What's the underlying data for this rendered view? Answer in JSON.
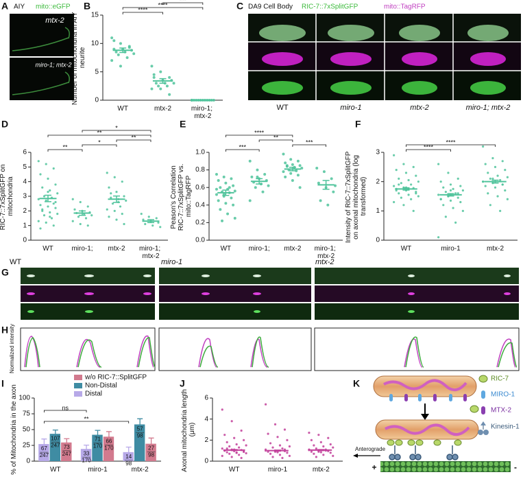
{
  "figure": {
    "A": {
      "letter": "A",
      "channel": "AIY",
      "marker": "mito::eGFP",
      "rows": [
        "mtx-2",
        "miro-1; mtx-2"
      ]
    },
    "C": {
      "letter": "C",
      "title": "DA9 Cell Body",
      "green": "RIC-7::7xSplitGFP",
      "magenta": "mito::TagRFP",
      "columns": [
        "WT",
        "miro-1",
        "mtx-2",
        "miro-1; mtx-2"
      ]
    },
    "G": {
      "letter": "G",
      "columns": [
        "WT",
        "miro-1",
        "mtx-2"
      ]
    },
    "H": {
      "letter": "H",
      "ylabel": "Normalized intensity"
    },
    "K": {
      "letter": "K",
      "legend": [
        "RIC-7",
        "MIRO-1",
        "MTX-2",
        "Kinesin-1"
      ],
      "direction": "Anterograde",
      "plus": "+",
      "minus": "-"
    }
  },
  "chart_data": [
    {
      "type": "dotplot",
      "letter": "B",
      "ylabel": "Number of mitochondria in AIY neurite",
      "color": "#4fc39b",
      "categories": [
        "WT",
        "mtx-2",
        "miro-1; mtx-2"
      ],
      "points": [
        [
          11,
          10,
          9.5,
          9,
          9,
          8.8,
          8.5,
          8.5,
          8.2,
          8,
          7.5,
          7,
          6,
          9.3,
          10.5
        ],
        [
          6,
          5,
          4,
          4,
          3.5,
          3.5,
          3,
          3,
          3,
          2.5,
          2.5,
          2,
          2,
          1,
          4.5
        ],
        [
          0,
          0,
          0,
          0,
          0,
          0,
          0,
          0,
          0,
          0,
          0,
          0
        ]
      ],
      "means": [
        8.8,
        3.4,
        0
      ],
      "errors": [
        0.4,
        0.4,
        0
      ],
      "ylim": [
        0,
        15
      ],
      "yticks": [
        0,
        5,
        10,
        15
      ],
      "brackets": [
        {
          "between": [
            "WT",
            "mtx-2"
          ],
          "label": "****"
        },
        {
          "between": [
            "WT",
            "miro-1; mtx-2"
          ],
          "label": "****"
        },
        {
          "between": [
            "mtx-2",
            "miro-1; mtx-2"
          ],
          "label": "***"
        }
      ]
    },
    {
      "type": "dotplot",
      "letter": "D",
      "ylabel": "Enrichment of RIC-7::7xSplitGFP on mitochondria",
      "color": "#4fc39b",
      "categories": [
        "WT",
        "miro-1;",
        "mtx-2",
        "miro-1; mtx-2"
      ],
      "points": [
        [
          5.4,
          5.2,
          4.9,
          4.5,
          4.2,
          3.8,
          3.6,
          3.4,
          3.2,
          3.0,
          2.9,
          2.8,
          2.7,
          2.5,
          2.4,
          2.3,
          2.2,
          2.0,
          1.9,
          1.8,
          1.7,
          1.5,
          1.3,
          1.2,
          1.0,
          0.8,
          3.3,
          2.6,
          2.1,
          1.6
        ],
        [
          2.8,
          2.6,
          2.3,
          2.1,
          2.0,
          1.9,
          1.85,
          1.8,
          1.7,
          1.6,
          1.5,
          1.3,
          1.1,
          1.0
        ],
        [
          4.6,
          4.3,
          4.0,
          3.6,
          3.3,
          3.0,
          2.9,
          2.8,
          2.7,
          2.5,
          2.3,
          2.1,
          2.0,
          1.8,
          1.6,
          1.4,
          1.1,
          3.2,
          2.6
        ],
        [
          1.8,
          1.6,
          1.5,
          1.4,
          1.3,
          1.2,
          1.1,
          1.0,
          0.9
        ]
      ],
      "means": [
        2.85,
        1.85,
        2.8,
        1.3
      ],
      "errors": [
        0.22,
        0.15,
        0.22,
        0.1
      ],
      "ylim": [
        0,
        6
      ],
      "yticks": [
        0,
        1,
        2,
        3,
        4,
        5,
        6
      ],
      "brackets": [
        {
          "between": [
            "WT",
            "miro-1;"
          ],
          "label": "**"
        },
        {
          "between": [
            "miro-1;",
            "mtx-2"
          ],
          "label": "*"
        },
        {
          "between": [
            "mtx-2",
            "miro-1; mtx-2"
          ],
          "label": "**"
        },
        {
          "between": [
            "WT",
            "miro-1; mtx-2"
          ],
          "label": "**"
        },
        {
          "between": [
            "miro-1;",
            "miro-1; mtx-2"
          ],
          "label": "*"
        }
      ]
    },
    {
      "type": "dotplot",
      "letter": "E",
      "ylabel": "Peason's Correlation RIC-7::7xSplitGFP vs. mito::TagRFP",
      "color": "#4fc39b",
      "categories": [
        "WT",
        "miro-1;",
        "mtx-2",
        "miro-1; mtx-2"
      ],
      "points": [
        [
          0.75,
          0.72,
          0.7,
          0.68,
          0.65,
          0.62,
          0.6,
          0.58,
          0.56,
          0.55,
          0.54,
          0.52,
          0.5,
          0.48,
          0.45,
          0.42,
          0.4,
          0.35,
          0.3,
          0.25,
          0.22,
          0.6,
          0.58,
          0.52
        ],
        [
          0.9,
          0.8,
          0.75,
          0.72,
          0.7,
          0.68,
          0.66,
          0.64,
          0.62,
          0.6,
          0.55,
          0.45,
          0.72
        ],
        [
          0.98,
          0.92,
          0.9,
          0.88,
          0.86,
          0.85,
          0.84,
          0.83,
          0.82,
          0.8,
          0.79,
          0.78,
          0.76,
          0.74,
          0.72,
          0.68,
          0.6,
          0.85
        ],
        [
          0.82,
          0.78,
          0.7,
          0.65,
          0.6,
          0.55,
          0.45,
          0.4,
          0.62
        ]
      ],
      "means": [
        0.54,
        0.67,
        0.81,
        0.63
      ],
      "errors": [
        0.03,
        0.03,
        0.02,
        0.05
      ],
      "ylim": [
        0,
        1
      ],
      "yticks": [
        {
          "value": 0,
          "label": "0.0"
        },
        0.2,
        0.4,
        0.6,
        0.8,
        {
          "value": 1,
          "label": "1.0"
        }
      ],
      "brackets": [
        {
          "between": [
            "WT",
            "miro-1;"
          ],
          "label": "***"
        },
        {
          "between": [
            "mtx-2",
            "miro-1; mtx-2"
          ],
          "label": "***"
        },
        {
          "between": [
            "miro-1;",
            "mtx-2"
          ],
          "label": "**"
        },
        {
          "between": [
            "WT",
            "mtx-2"
          ],
          "label": "****"
        }
      ]
    },
    {
      "type": "dotplot",
      "letter": "F",
      "ylabel": "Intensity of RIC-7::7xSplitGFP on axonal mitochondria (log transformed)",
      "color": "#4fc39b",
      "categories": [
        "WT",
        "miro-1",
        "mtx-2"
      ],
      "points": [
        [
          2.9,
          2.6,
          2.5,
          2.4,
          2.3,
          2.2,
          2.1,
          2.05,
          2.0,
          1.95,
          1.9,
          1.85,
          1.8,
          1.78,
          1.75,
          1.7,
          1.65,
          1.6,
          1.55,
          1.5,
          1.45,
          1.4,
          1.3,
          1.2,
          1.0,
          1.7,
          1.8,
          1.6,
          1.9,
          1.75
        ],
        [
          2.6,
          2.3,
          2.1,
          2.0,
          1.9,
          1.85,
          1.8,
          1.75,
          1.7,
          1.65,
          1.6,
          1.55,
          1.5,
          1.45,
          1.4,
          1.35,
          1.3,
          1.2,
          1.1,
          1.0,
          0.8,
          0.6,
          0.1,
          1.5,
          1.6,
          1.4,
          1.7
        ],
        [
          3.2,
          2.8,
          2.7,
          2.6,
          2.5,
          2.4,
          2.3,
          2.2,
          2.15,
          2.1,
          2.05,
          2.0,
          1.95,
          1.9,
          1.85,
          1.8,
          1.7,
          1.6,
          1.5,
          1.4,
          1.2,
          1.0,
          2.0,
          2.1,
          1.9
        ]
      ],
      "means": [
        1.75,
        1.55,
        2.0
      ],
      "errors": [
        0.04,
        0.04,
        0.05
      ],
      "ylim": [
        0,
        3
      ],
      "yticks": [
        0,
        1,
        2,
        3
      ],
      "brackets": [
        {
          "between": [
            "WT",
            "miro-1"
          ],
          "label": "****"
        },
        {
          "between": [
            "WT",
            "mtx-2"
          ],
          "label": "****"
        }
      ]
    },
    {
      "type": "bar",
      "letter": "I",
      "ylabel": "% of Mitochondria in the axon",
      "categories": [
        "WT",
        "miro-1",
        "mtx-2"
      ],
      "series": [
        {
          "name": "Distal",
          "color": "#b7a9e8",
          "values": [
            27.1,
            19.4,
            14.3
          ],
          "errors": [
            8,
            6,
            8
          ],
          "counts": [
            67,
            33,
            14
          ],
          "totals": [
            247,
            170,
            98
          ]
        },
        {
          "name": "Non-Distal",
          "color": "#3f8ca3",
          "values": [
            43.3,
            41.8,
            58.2
          ],
          "errors": [
            6,
            7,
            9
          ],
          "counts": [
            107,
            71,
            57
          ],
          "totals": [
            247,
            170,
            98
          ]
        },
        {
          "name": "w/o RIC-7::SplitGFP",
          "color": "#d27a8e",
          "values": [
            29.6,
            38.8,
            27.6
          ],
          "errors": [
            6,
            8,
            9
          ],
          "counts": [
            73,
            66,
            27
          ],
          "totals": [
            247,
            170,
            98
          ]
        }
      ],
      "ylim": [
        0,
        100
      ],
      "yticks": [
        0,
        25,
        50,
        75,
        100
      ],
      "brackets": [
        {
          "between": [
            "WT",
            "miro-1"
          ],
          "label": "ns"
        },
        {
          "between": [
            "WT",
            "mtx-2"
          ],
          "label": "**"
        }
      ]
    },
    {
      "type": "dotplot",
      "letter": "J",
      "ylabel": "Axonal mitochondria length (μm)",
      "color": "#c2409a",
      "categories": [
        "WT",
        "miro-1",
        "mtx-2"
      ],
      "points": [
        [
          4.9,
          3.8,
          2.9,
          2.5,
          2.2,
          2.0,
          1.8,
          1.6,
          1.5,
          1.4,
          1.3,
          1.2,
          1.1,
          1.05,
          1.0,
          0.95,
          0.9,
          0.85,
          0.8,
          0.75,
          0.7,
          0.6,
          0.5,
          0.4,
          0.3,
          1.0,
          1.1,
          0.9,
          1.2,
          0.8
        ],
        [
          5.4,
          3.5,
          3.0,
          2.6,
          2.3,
          2.0,
          1.7,
          1.5,
          1.4,
          1.3,
          1.2,
          1.1,
          1.0,
          0.95,
          0.9,
          0.85,
          0.8,
          0.7,
          0.6,
          0.5,
          0.4,
          0.3,
          1.0,
          0.9,
          1.1
        ],
        [
          2.7,
          2.5,
          2.2,
          2.0,
          1.8,
          1.6,
          1.5,
          1.4,
          1.3,
          1.2,
          1.1,
          1.05,
          1.0,
          0.95,
          0.9,
          0.85,
          0.8,
          0.7,
          0.6,
          0.5,
          0.4,
          1.0,
          1.1,
          0.9
        ]
      ],
      "means": [
        1.05,
        1.0,
        1.05
      ],
      "errors": [
        0.05,
        0.05,
        0.05
      ],
      "ylim": [
        0,
        6
      ],
      "yticks": [
        0,
        2,
        4,
        6
      ],
      "brackets": []
    }
  ]
}
